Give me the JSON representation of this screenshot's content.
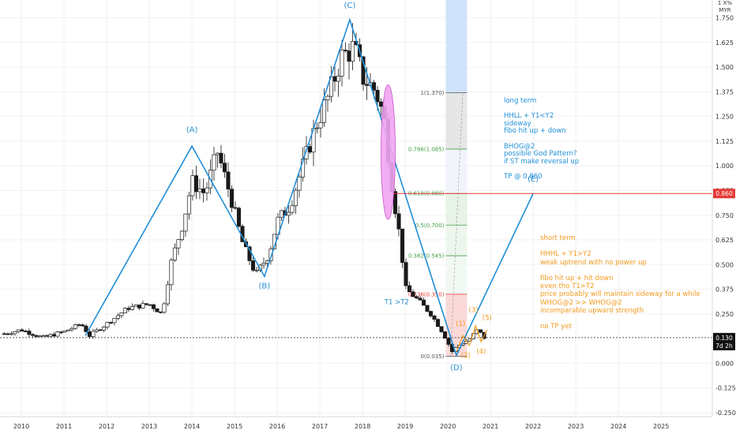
{
  "header": {
    "line1": "1 X%",
    "line2": "MYR"
  },
  "colors": {
    "candle": "#1a1a1a",
    "wave": "#1f8fd6",
    "orange": "#f29a1e",
    "fib_red": "#e53935",
    "fib_green": "#43a047",
    "pink_fill": "#f2a6f2",
    "res_line": "#e53935",
    "grid": "#f2f2f2"
  },
  "chart_data": {
    "type": "candlestick",
    "x_range": [
      2009.5,
      2026.2
    ],
    "y_range": [
      -0.27,
      1.84
    ],
    "y_ticks": [
      {
        "value": 1.75,
        "label": "1.750"
      },
      {
        "value": 1.625,
        "label": "1.625"
      },
      {
        "value": 1.5,
        "label": "1.500"
      },
      {
        "value": 1.375,
        "label": "1.375"
      },
      {
        "value": 1.25,
        "label": "1.250"
      },
      {
        "value": 1.125,
        "label": "1.125"
      },
      {
        "value": 1.0,
        "label": "1.000"
      },
      {
        "value": 0.875,
        "label": "0.875"
      },
      {
        "value": 0.75,
        "label": "0.750"
      },
      {
        "value": 0.625,
        "label": "0.625"
      },
      {
        "value": 0.5,
        "label": "0.500"
      },
      {
        "value": 0.375,
        "label": "0.375"
      },
      {
        "value": 0.25,
        "label": "0.250"
      },
      {
        "value": 0.0,
        "label": "0.000"
      },
      {
        "value": -0.125,
        "label": "-0.125"
      },
      {
        "value": -0.25,
        "label": "-0.250"
      }
    ],
    "x_ticks": [
      "2010",
      "2011",
      "2012",
      "2013",
      "2014",
      "2015",
      "2016",
      "2017",
      "2018",
      "2019",
      "2020",
      "2021",
      "2022",
      "2023",
      "2024",
      "2025"
    ],
    "current_price": {
      "value": 0.13,
      "label": "0.130",
      "timer": "7d 2h"
    },
    "resistance": {
      "value": 0.86,
      "label": "0.860"
    },
    "candles_anchors": [
      [
        2009.6,
        0.15
      ],
      [
        2010.0,
        0.17
      ],
      [
        2010.5,
        0.13
      ],
      [
        2011.0,
        0.16
      ],
      [
        2011.4,
        0.2
      ],
      [
        2011.6,
        0.14
      ],
      [
        2012.0,
        0.2
      ],
      [
        2012.5,
        0.28
      ],
      [
        2013.0,
        0.3
      ],
      [
        2013.3,
        0.25
      ],
      [
        2013.5,
        0.5
      ],
      [
        2013.8,
        0.72
      ],
      [
        2014.0,
        0.92
      ],
      [
        2014.3,
        0.86
      ],
      [
        2014.6,
        1.07
      ],
      [
        2014.9,
        0.85
      ],
      [
        2015.2,
        0.6
      ],
      [
        2015.5,
        0.45
      ],
      [
        2015.8,
        0.55
      ],
      [
        2016.0,
        0.72
      ],
      [
        2016.3,
        0.8
      ],
      [
        2016.6,
        1.0
      ],
      [
        2016.9,
        1.2
      ],
      [
        2017.2,
        1.35
      ],
      [
        2017.5,
        1.55
      ],
      [
        2017.8,
        1.6
      ],
      [
        2018.0,
        1.45
      ],
      [
        2018.3,
        1.38
      ],
      [
        2018.5,
        1.25
      ],
      [
        2018.7,
        0.88
      ],
      [
        2018.9,
        0.6
      ],
      [
        2019.0,
        0.38
      ],
      [
        2019.3,
        0.32
      ],
      [
        2019.6,
        0.25
      ],
      [
        2019.9,
        0.15
      ],
      [
        2020.1,
        0.06
      ],
      [
        2020.3,
        0.1
      ],
      [
        2020.5,
        0.12
      ],
      [
        2020.7,
        0.17
      ],
      [
        2020.85,
        0.13
      ]
    ],
    "waves": [
      {
        "label": "(A)",
        "x": 2014.0,
        "y": 1.17
      },
      {
        "label": "(B)",
        "x": 2015.7,
        "y": 0.38
      },
      {
        "label": "(C)",
        "x": 2017.7,
        "y": 1.8
      },
      {
        "label": "(D)",
        "x": 2020.2,
        "y": -0.035
      },
      {
        "label": "(E)",
        "x": 2022.0,
        "y": 0.92
      }
    ],
    "impulse": {
      "l1": "(1)",
      "l2": "(2)",
      "l3": "(3)",
      "l4": "(4)",
      "l5": "(5)"
    },
    "fib_levels": [
      {
        "value": 1.37,
        "label": "1(1.370)",
        "color": "#555555"
      },
      {
        "value": 1.085,
        "label": "0.786(1.085)",
        "color": "#43a047"
      },
      {
        "value": 0.86,
        "label": "0.618(0.860)",
        "color": "#43a047"
      },
      {
        "value": 0.7,
        "label": "0.5(0.700)",
        "color": "#43a047"
      },
      {
        "value": 0.545,
        "label": "0.382(0.545)",
        "color": "#43a047"
      },
      {
        "value": 0.35,
        "label": "0.236(0.350)",
        "color": "#e53935"
      },
      {
        "value": 0.035,
        "label": "0(0.035)",
        "color": "#555555"
      }
    ],
    "t1t2": "T1 >T2"
  },
  "notes": {
    "long_term": [
      "long term",
      "",
      "HHLL + Y1<Y2",
      "sideway",
      "fibo hit up + down",
      "",
      "BHOG@2",
      "possible God Pattern?",
      "if ST make reversal up",
      "",
      "TP @ 0.860"
    ],
    "short_term": [
      "short term",
      "",
      "HHHL + Y1>Y2",
      "weak uptrend with no power up",
      "",
      "fibo hit up + hit down",
      "even tho T1>T2",
      "price probably will maintain sideway for a while",
      "WHOG@2 >> WHOG@2",
      "incomparable upward strength",
      "",
      "no TP yet"
    ]
  }
}
